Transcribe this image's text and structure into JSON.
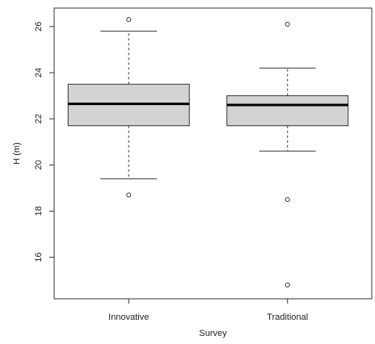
{
  "chart_data": {
    "type": "boxplot",
    "title": "",
    "xlabel": "Survey",
    "ylabel": "H (m)",
    "ylim": [
      14.2,
      26.8
    ],
    "yticks": [
      16,
      18,
      20,
      22,
      24,
      26
    ],
    "grid": false,
    "legend": "none",
    "colors": {
      "box_fill": "#d3d3d3",
      "stroke": "#333333",
      "median": "#000000"
    },
    "categories": [
      "Innovative",
      "Traditional"
    ],
    "boxes": [
      {
        "name": "Innovative",
        "whisker_low": 19.4,
        "q1": 21.7,
        "median": 22.65,
        "q3": 23.5,
        "whisker_high": 25.8,
        "outliers": [
          18.7,
          26.3
        ]
      },
      {
        "name": "Traditional",
        "whisker_low": 20.6,
        "q1": 21.7,
        "median": 22.6,
        "q3": 23.0,
        "whisker_high": 24.2,
        "outliers": [
          14.8,
          18.5,
          26.1
        ]
      }
    ]
  }
}
